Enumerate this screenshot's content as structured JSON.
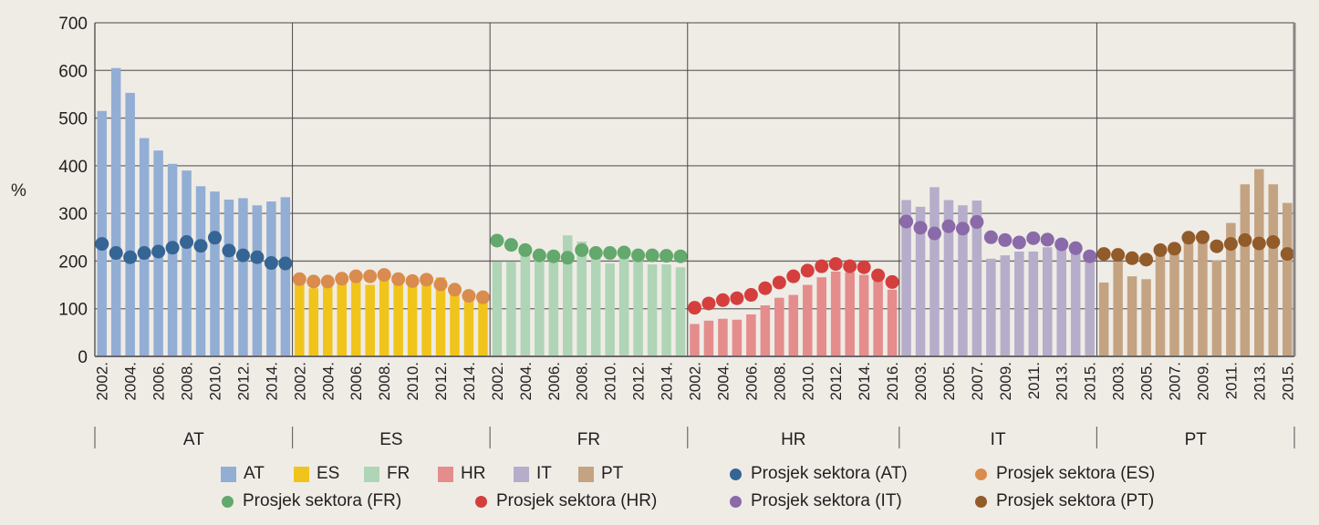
{
  "chart_data": {
    "type": "bar",
    "title": "",
    "xlabel": "",
    "ylabel": "%",
    "ylim": [
      0,
      700
    ],
    "yticks": [
      0,
      100,
      200,
      300,
      400,
      500,
      600,
      700
    ],
    "grid": true,
    "legend_position": "bottom",
    "groups": [
      {
        "name": "AT",
        "color": "#93aed4",
        "dot_color": "#356595",
        "years": [
          2002,
          2003,
          2004,
          2005,
          2006,
          2007,
          2008,
          2009,
          2010,
          2011,
          2012,
          2013,
          2014,
          2015
        ],
        "tick_labels": [
          "2002.",
          "2004.",
          "2006.",
          "2008.",
          "2010.",
          "2012.",
          "2014."
        ],
        "tick_start": 0,
        "bars": [
          515,
          605,
          553,
          458,
          432,
          404,
          390,
          357,
          346,
          329,
          332,
          317,
          325,
          334
        ],
        "avg": [
          236,
          217,
          208,
          217,
          220,
          228,
          240,
          232,
          249,
          222,
          212,
          208,
          196,
          195
        ]
      },
      {
        "name": "ES",
        "color": "#f1c41c",
        "dot_color": "#d98c4e",
        "years": [
          2002,
          2003,
          2004,
          2005,
          2006,
          2007,
          2008,
          2009,
          2010,
          2011,
          2012,
          2013,
          2014,
          2015
        ],
        "tick_labels": [
          "2002.",
          "2004.",
          "2006.",
          "2008.",
          "2010.",
          "2012.",
          "2014."
        ],
        "tick_start": 0,
        "bars": [
          153,
          143,
          153,
          157,
          164,
          150,
          168,
          168,
          157,
          162,
          166,
          138,
          120,
          118
        ],
        "avg": [
          162,
          157,
          157,
          163,
          168,
          168,
          171,
          162,
          158,
          161,
          151,
          140,
          127,
          124
        ]
      },
      {
        "name": "FR",
        "color": "#b0d4b6",
        "dot_color": "#63a86c",
        "years": [
          2002,
          2003,
          2004,
          2005,
          2006,
          2007,
          2008,
          2009,
          2010,
          2011,
          2012,
          2013,
          2014,
          2015
        ],
        "tick_labels": [
          "2002.",
          "2004.",
          "2006.",
          "2008.",
          "2010.",
          "2012.",
          "2014."
        ],
        "tick_start": 0,
        "bars": [
          199,
          199,
          214,
          205,
          205,
          254,
          241,
          210,
          195,
          214,
          205,
          193,
          193,
          187
        ],
        "avg": [
          243,
          234,
          223,
          212,
          210,
          207,
          223,
          217,
          217,
          218,
          212,
          212,
          211,
          210
        ]
      },
      {
        "name": "HR",
        "color": "#e48d8c",
        "dot_color": "#d43f3d",
        "years": [
          2002,
          2003,
          2004,
          2005,
          2006,
          2007,
          2008,
          2009,
          2010,
          2011,
          2012,
          2013,
          2014,
          2015,
          2016
        ],
        "tick_labels": [
          "2002.",
          "2004.",
          "2006.",
          "2008.",
          "2010.",
          "2012.",
          "2014.",
          "2016."
        ],
        "tick_start": 0,
        "bars": [
          68,
          75,
          79,
          77,
          88,
          107,
          123,
          129,
          150,
          166,
          178,
          176,
          171,
          168,
          140
        ],
        "avg": [
          102,
          111,
          118,
          122,
          129,
          143,
          155,
          168,
          180,
          189,
          194,
          189,
          187,
          170,
          156
        ]
      },
      {
        "name": "IT",
        "color": "#b6adcb",
        "dot_color": "#8a6aa8",
        "years": [
          2002,
          2003,
          2004,
          2005,
          2006,
          2007,
          2008,
          2009,
          2010,
          2011,
          2012,
          2013,
          2014,
          2015
        ],
        "tick_labels": [
          "2003.",
          "2005.",
          "2007.",
          "2009.",
          "2011.",
          "2013.",
          "2015."
        ],
        "tick_start": 1,
        "bars": [
          328,
          314,
          355,
          328,
          317,
          327,
          205,
          212,
          220,
          220,
          229,
          231,
          224,
          210
        ],
        "avg": [
          283,
          270,
          258,
          273,
          268,
          282,
          250,
          244,
          239,
          248,
          245,
          235,
          227,
          210
        ]
      },
      {
        "name": "PT",
        "color": "#c4a383",
        "dot_color": "#925b2a",
        "years": [
          2002,
          2003,
          2004,
          2005,
          2006,
          2007,
          2008,
          2009,
          2010,
          2011,
          2012,
          2013,
          2014,
          2015
        ],
        "tick_labels": [
          "2003.",
          "2005.",
          "2007.",
          "2009.",
          "2011.",
          "2013.",
          "2015."
        ],
        "tick_start": 1,
        "bars": [
          155,
          199,
          168,
          162,
          216,
          238,
          249,
          249,
          201,
          280,
          361,
          393,
          361,
          322
        ],
        "avg": [
          215,
          213,
          206,
          203,
          223,
          226,
          249,
          250,
          231,
          236,
          244,
          237,
          240,
          215
        ]
      }
    ],
    "legend": {
      "bars": [
        "AT",
        "ES",
        "FR",
        "HR",
        "IT",
        "PT"
      ],
      "dots": [
        "Prosjek sektora (AT)",
        "Prosjek sektora (ES)",
        "Prosjek sektora (FR)",
        "Prosjek sektora (HR)",
        "Prosjek sektora (IT)",
        "Prosjek sektora (PT)"
      ]
    }
  }
}
